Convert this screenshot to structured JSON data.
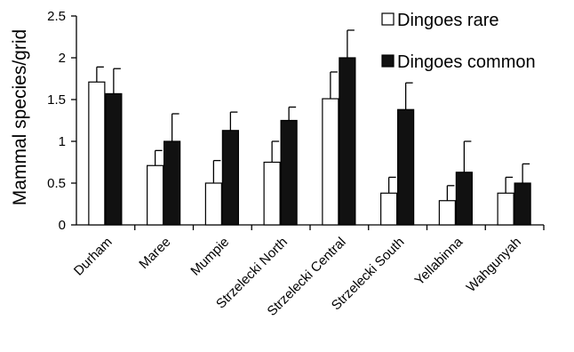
{
  "chart_data": {
    "type": "bar",
    "title": "",
    "xlabel": "",
    "ylabel": "Mammal species/grid",
    "ylim": [
      0,
      2.5
    ],
    "yticks": [
      "0",
      "0.5",
      "1",
      "1.5",
      "2",
      "2.5"
    ],
    "grid": false,
    "legend_position": "top-right",
    "categories": [
      "Durham",
      "Maree",
      "Mumpie",
      "Strzelecki North",
      "Strzelecki Central",
      "Strzelecki South",
      "Yellabinna",
      "Wahgunyah"
    ],
    "series": [
      {
        "name": "Dingoes rare",
        "color": "#ffffff",
        "values": [
          1.71,
          0.71,
          0.5,
          0.75,
          1.51,
          0.38,
          0.29,
          0.38
        ],
        "error_upper": [
          1.89,
          0.89,
          0.77,
          1.0,
          1.83,
          0.57,
          0.47,
          0.57
        ]
      },
      {
        "name": "Dingoes common",
        "color": "#111111",
        "values": [
          1.57,
          1.0,
          1.13,
          1.25,
          2.0,
          1.38,
          0.63,
          0.5
        ],
        "error_upper": [
          1.87,
          1.33,
          1.35,
          1.41,
          2.33,
          1.7,
          1.0,
          0.73
        ]
      }
    ]
  }
}
